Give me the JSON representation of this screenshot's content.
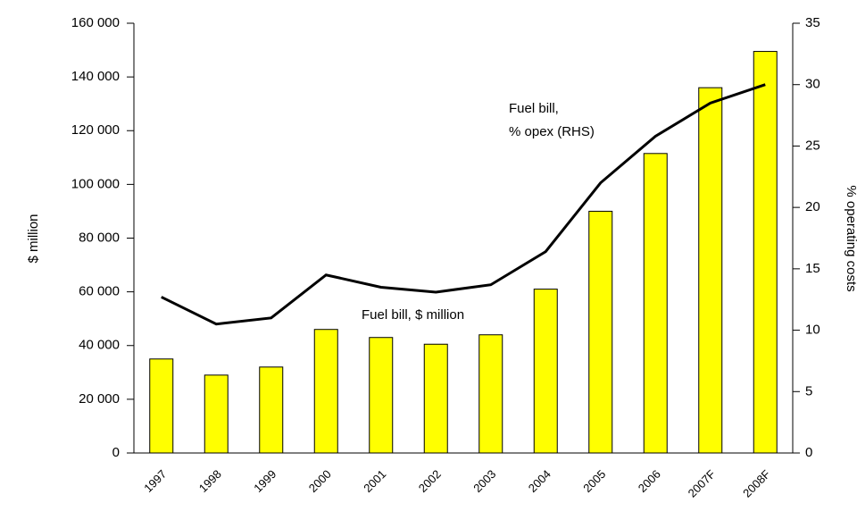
{
  "chart_data": {
    "type": "bar_line",
    "y_label": "$ million",
    "y2_label": "% operating costs",
    "annotations": [
      "Fuel bill, $ million",
      [
        "Fuel bill,",
        "% opex (RHS)"
      ]
    ],
    "categories": [
      "1997",
      "1998",
      "1999",
      "2000",
      "2001",
      "2002",
      "2003",
      "2004",
      "2005",
      "2006",
      "2007F",
      "2008F"
    ],
    "series": [
      {
        "type": "bar",
        "color": "#ffff00",
        "values": [
          35000,
          29000,
          32000,
          46000,
          43000,
          40500,
          44000,
          61000,
          90000,
          111500,
          136000,
          149500
        ]
      },
      {
        "type": "line",
        "color": "#000000",
        "axis": "y2",
        "values": [
          12.7,
          10.5,
          11,
          14.5,
          13.5,
          13.1,
          13.7,
          16.4,
          22,
          25.8,
          28.5,
          30
        ]
      }
    ],
    "ylim": [
      0,
      160000
    ],
    "yticks": [
      0,
      {
        "value": 20000,
        "label": "20 000"
      },
      {
        "value": 40000,
        "label": "40 000"
      },
      {
        "value": 60000,
        "label": "60 000"
      },
      {
        "value": 80000,
        "label": "80 000"
      },
      {
        "value": 100000,
        "label": "100 000"
      },
      {
        "value": 120000,
        "label": "120 000"
      },
      {
        "value": 140000,
        "label": "140 000"
      },
      {
        "value": 160000,
        "label": "160 000"
      }
    ],
    "y2lim": [
      0,
      35
    ],
    "y2ticks": [
      0,
      5,
      10,
      15,
      20,
      25,
      30,
      35
    ]
  }
}
